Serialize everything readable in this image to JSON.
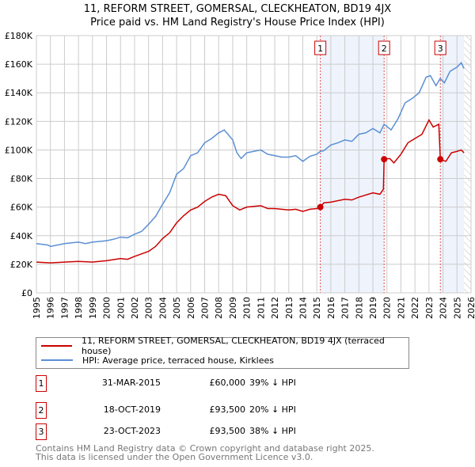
{
  "title": "11, REFORM STREET, GOMERSAL, CLECKHEATON, BD19 4JX",
  "subtitle": "Price paid vs. HM Land Registry's House Price Index (HPI)",
  "chart_data": {
    "type": "line",
    "xlim": [
      1995,
      2026
    ],
    "ylim": [
      0,
      180000
    ],
    "yticks": [
      {
        "v": 0,
        "label": "£0"
      },
      {
        "v": 20000,
        "label": "£20K"
      },
      {
        "v": 40000,
        "label": "£40K"
      },
      {
        "v": 60000,
        "label": "£60K"
      },
      {
        "v": 80000,
        "label": "£80K"
      },
      {
        "v": 100000,
        "label": "£100K"
      },
      {
        "v": 120000,
        "label": "£120K"
      },
      {
        "v": 140000,
        "label": "£140K"
      },
      {
        "v": 160000,
        "label": "£160K"
      },
      {
        "v": 180000,
        "label": "£180K"
      }
    ],
    "xticks": [
      "1995",
      "1996",
      "1997",
      "1998",
      "1999",
      "2000",
      "2001",
      "2002",
      "2003",
      "2004",
      "2005",
      "2006",
      "2007",
      "2008",
      "2009",
      "2010",
      "2011",
      "2012",
      "2013",
      "2014",
      "2015",
      "2016",
      "2017",
      "2018",
      "2019",
      "2020",
      "2021",
      "2022",
      "2023",
      "2024",
      "2025",
      "2026"
    ],
    "grid": true,
    "shaded_spans": [
      [
        2015.25,
        2019.8
      ],
      [
        2023.81,
        2025.5
      ]
    ],
    "hatched_from": 2025.5,
    "series": [
      {
        "name": "11, REFORM STREET, GOMERSAL, CLECKHEATON, BD19 4JX (terraced house)",
        "color": "#cc0000",
        "points": [
          [
            1995,
            21.5
          ],
          [
            1996,
            21
          ],
          [
            1997,
            21.5
          ],
          [
            1998,
            22
          ],
          [
            1999,
            21.5
          ],
          [
            2000,
            22.5
          ],
          [
            2001,
            24
          ],
          [
            2001.5,
            23.5
          ],
          [
            2002,
            25.5
          ],
          [
            2003,
            29
          ],
          [
            2003.5,
            32.5
          ],
          [
            2004,
            38
          ],
          [
            2004.5,
            42
          ],
          [
            2005,
            49
          ],
          [
            2005.5,
            54
          ],
          [
            2006,
            58
          ],
          [
            2006.5,
            60
          ],
          [
            2007,
            64
          ],
          [
            2007.5,
            67
          ],
          [
            2008,
            69
          ],
          [
            2008.5,
            68
          ],
          [
            2009,
            61
          ],
          [
            2009.5,
            58
          ],
          [
            2010,
            60
          ],
          [
            2011,
            61
          ],
          [
            2011.5,
            59
          ],
          [
            2012,
            59
          ],
          [
            2013,
            58
          ],
          [
            2013.5,
            58.5
          ],
          [
            2014,
            57
          ],
          [
            2014.5,
            58.5
          ],
          [
            2015,
            59
          ],
          [
            2015.25,
            60
          ],
          [
            2015.5,
            63
          ],
          [
            2016,
            63.5
          ],
          [
            2017,
            65.5
          ],
          [
            2017.5,
            65
          ],
          [
            2018,
            67
          ],
          [
            2019,
            70
          ],
          [
            2019.5,
            69
          ],
          [
            2019.75,
            72.5
          ],
          [
            2019.8,
            93.5
          ],
          [
            2020.2,
            94
          ],
          [
            2020.5,
            91
          ],
          [
            2021,
            97
          ],
          [
            2021.5,
            105
          ],
          [
            2022,
            108
          ],
          [
            2022.5,
            111
          ],
          [
            2023,
            121
          ],
          [
            2023.3,
            116
          ],
          [
            2023.7,
            118
          ],
          [
            2023.81,
            93.5
          ],
          [
            2024.2,
            92
          ],
          [
            2024.6,
            98
          ],
          [
            2025,
            99
          ],
          [
            2025.3,
            100
          ],
          [
            2025.5,
            98
          ]
        ]
      },
      {
        "name": "HPI: Average price, terraced house, Kirklees",
        "color": "#5b8fd4",
        "points": [
          [
            1995,
            34.5
          ],
          [
            1995.8,
            33.5
          ],
          [
            1996,
            32.5
          ],
          [
            1997,
            34.5
          ],
          [
            1998,
            35.5
          ],
          [
            1998.5,
            34.5
          ],
          [
            1999,
            35.5
          ],
          [
            2000,
            36.5
          ],
          [
            2000.5,
            37.5
          ],
          [
            2001,
            39
          ],
          [
            2001.5,
            38.5
          ],
          [
            2002,
            41
          ],
          [
            2002.5,
            43
          ],
          [
            2003,
            48
          ],
          [
            2003.5,
            53.5
          ],
          [
            2004,
            62
          ],
          [
            2004.5,
            70
          ],
          [
            2005,
            83
          ],
          [
            2005.5,
            87
          ],
          [
            2006,
            96
          ],
          [
            2006.5,
            98
          ],
          [
            2007,
            105
          ],
          [
            2007.5,
            108
          ],
          [
            2008,
            112
          ],
          [
            2008.4,
            114
          ],
          [
            2009,
            107
          ],
          [
            2009.3,
            98
          ],
          [
            2009.6,
            94
          ],
          [
            2010,
            98
          ],
          [
            2010.5,
            99
          ],
          [
            2011,
            100
          ],
          [
            2011.5,
            97
          ],
          [
            2012,
            96
          ],
          [
            2012.5,
            95
          ],
          [
            2013,
            95
          ],
          [
            2013.5,
            96
          ],
          [
            2014,
            92
          ],
          [
            2014.5,
            95.5
          ],
          [
            2015,
            97
          ],
          [
            2015.25,
            99
          ],
          [
            2015.5,
            99.5
          ],
          [
            2016,
            103.5
          ],
          [
            2016.5,
            105
          ],
          [
            2017,
            107
          ],
          [
            2017.5,
            106
          ],
          [
            2018,
            111
          ],
          [
            2018.5,
            112
          ],
          [
            2019,
            115
          ],
          [
            2019.5,
            112
          ],
          [
            2019.8,
            118
          ],
          [
            2020.3,
            114
          ],
          [
            2020.8,
            122
          ],
          [
            2021.3,
            133
          ],
          [
            2021.8,
            136
          ],
          [
            2022.3,
            140
          ],
          [
            2022.8,
            151
          ],
          [
            2023.1,
            152
          ],
          [
            2023.5,
            145
          ],
          [
            2023.8,
            150
          ],
          [
            2024.1,
            147
          ],
          [
            2024.5,
            155
          ],
          [
            2025,
            158
          ],
          [
            2025.3,
            161
          ],
          [
            2025.5,
            157
          ]
        ]
      }
    ],
    "sales": [
      {
        "n": "1",
        "x": 2015.25,
        "y": 60
      },
      {
        "n": "2",
        "x": 2019.8,
        "y": 93.5
      },
      {
        "n": "3",
        "x": 2023.81,
        "y": 93.5
      }
    ]
  },
  "table": [
    {
      "n": "1",
      "date": "31-MAR-2015",
      "price": "£60,000",
      "pct": "39% ↓ HPI"
    },
    {
      "n": "2",
      "date": "18-OCT-2019",
      "price": "£93,500",
      "pct": "20% ↓ HPI"
    },
    {
      "n": "3",
      "date": "23-OCT-2023",
      "price": "£93,500",
      "pct": "38% ↓ HPI"
    }
  ],
  "footer1": "Contains HM Land Registry data © Crown copyright and database right 2025.",
  "footer2": "This data is licensed under the Open Government Licence v3.0."
}
